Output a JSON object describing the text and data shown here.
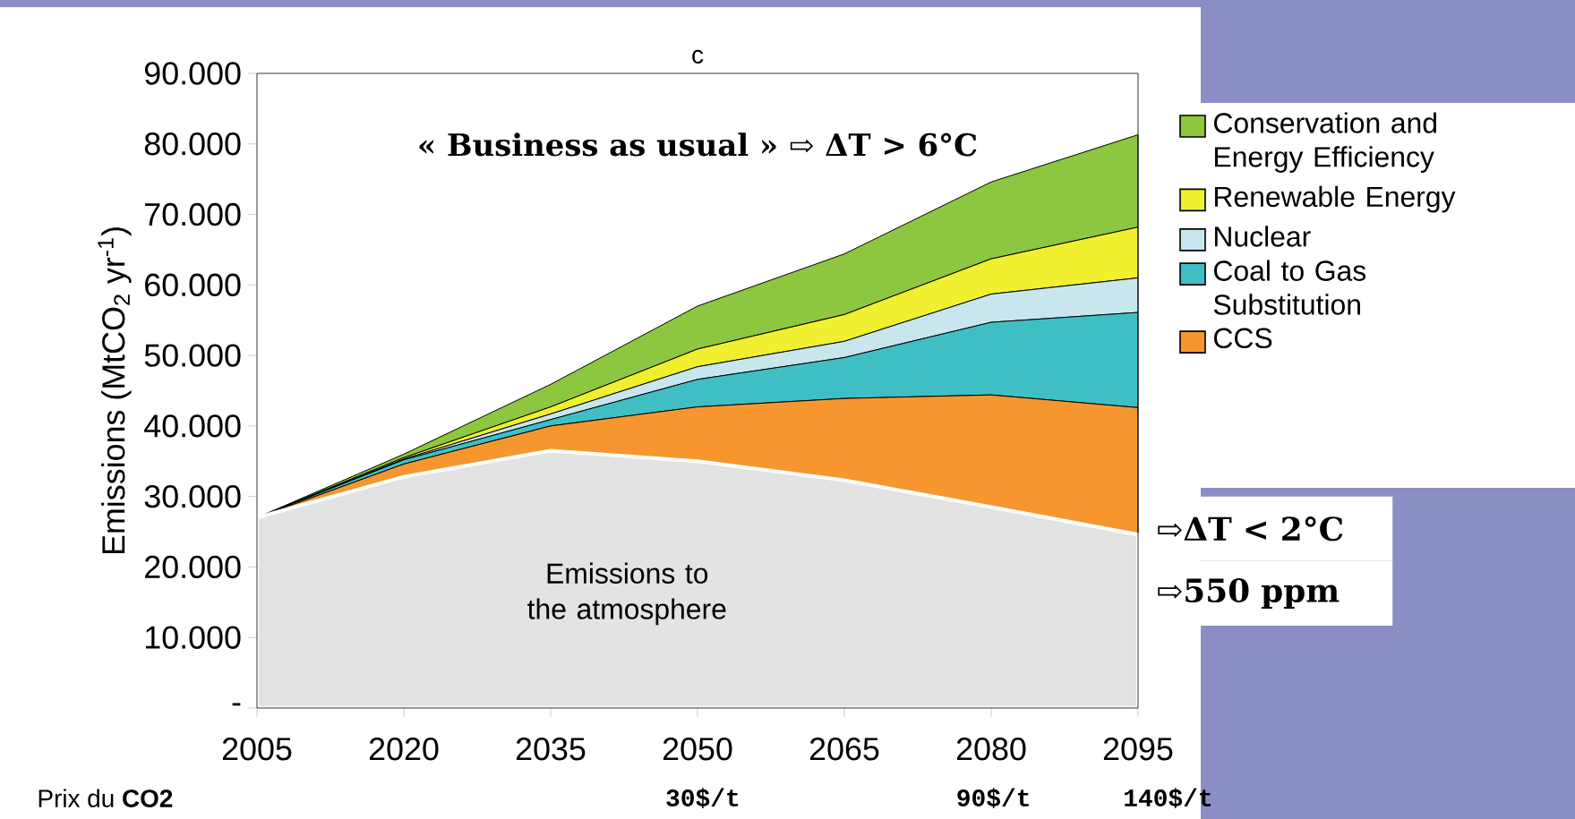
{
  "chart_data": {
    "type": "area",
    "stacked": true,
    "title": "c",
    "ylabel": "Emissions (MtCO$_{2}$ yr$^{-1}$)",
    "x": [
      2005,
      2020,
      2035,
      2050,
      2065,
      2080,
      2095
    ],
    "xlim": [
      2005,
      2095
    ],
    "ylim": [
      0,
      90000
    ],
    "xticks": [
      2005,
      2020,
      2035,
      2050,
      2065,
      2080,
      2095
    ],
    "yticks": [
      {
        "value": 0,
        "label": "-"
      },
      {
        "value": 10000,
        "label": "10.000"
      },
      {
        "value": 20000,
        "label": "20.000"
      },
      {
        "value": 30000,
        "label": "30.000"
      },
      {
        "value": 40000,
        "label": "40.000"
      },
      {
        "value": 50000,
        "label": "50.000"
      },
      {
        "value": 60000,
        "label": "60.000"
      },
      {
        "value": 70000,
        "label": "70.000"
      },
      {
        "value": 80000,
        "label": "80.000"
      },
      {
        "value": 90000,
        "label": "90.000"
      }
    ],
    "legend": "right",
    "series": [
      {
        "name": "Emissions to the atmosphere",
        "color": "#e3e3e3",
        "values": [
          27000,
          32800,
          36500,
          35000,
          32300,
          28500,
          24600
        ]
      },
      {
        "name": "CCS",
        "color": "#f7962f",
        "values": [
          0,
          1800,
          3500,
          7700,
          11600,
          15900,
          18000
        ]
      },
      {
        "name": "Coal to Gas Substitution",
        "color": "#3fbfc4",
        "values": [
          0,
          600,
          900,
          3900,
          5800,
          10300,
          13500
        ]
      },
      {
        "name": "Nuclear",
        "color": "#c8e6ee",
        "values": [
          0,
          100,
          800,
          1800,
          2300,
          4000,
          4900
        ]
      },
      {
        "name": "Renewable Energy",
        "color": "#f0ef30",
        "values": [
          0,
          200,
          1000,
          2500,
          3800,
          5000,
          7200
        ]
      },
      {
        "name": "Conservation and Energy Efficiency",
        "color": "#8dc63f",
        "values": [
          0,
          500,
          3200,
          6100,
          8600,
          10900,
          13100
        ]
      }
    ],
    "annotations": [
      "« Business as usual »  ⇨ ΔT > 6°C",
      "⇨ΔT < 2°C",
      "⇨550 ppm",
      "Prix du **CO2**",
      "30$/t",
      "90$/t",
      "140$/t"
    ]
  }
}
